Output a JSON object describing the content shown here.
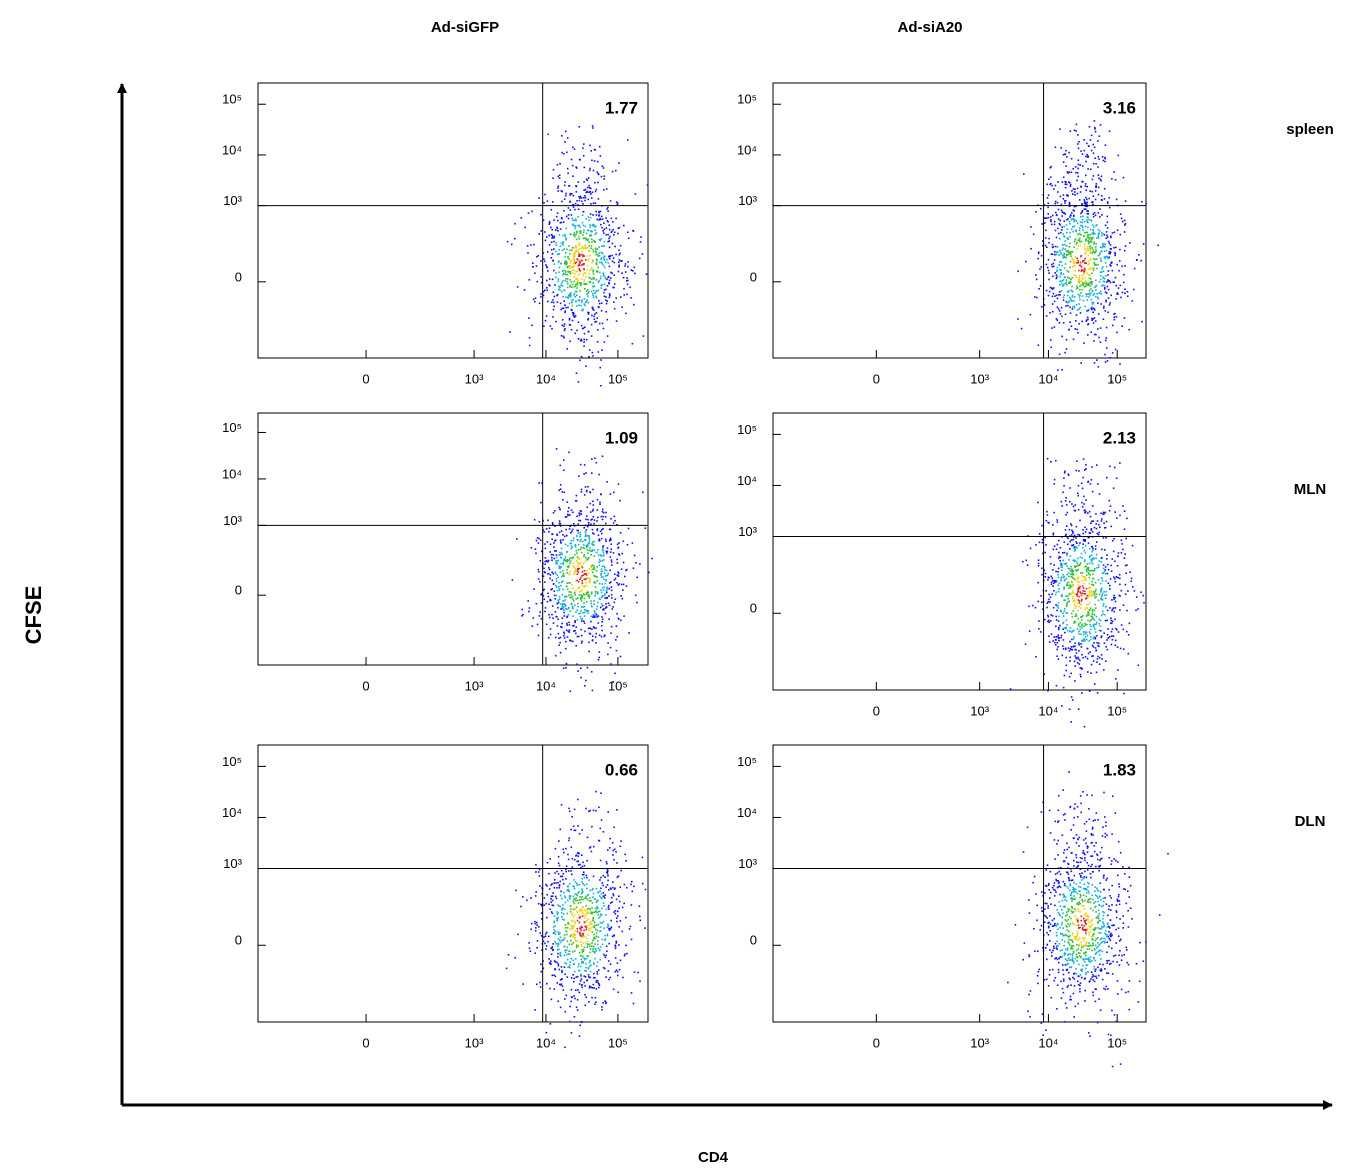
{
  "column_titles": [
    "Ad-siGFP",
    "Ad-siA20"
  ],
  "row_titles": [
    "spleen",
    "MLN",
    "DLN"
  ],
  "y_axis_label": "CFSE",
  "x_axis_label": "CD4",
  "chart_data": [
    {
      "type": "flow_density",
      "scale": "biexponential",
      "quadrant_value": 1.77,
      "gate": {
        "x": 9000,
        "y": 1000
      },
      "xlim": [
        -1000,
        262144
      ],
      "ylim": [
        -1000,
        262144
      ],
      "xticks": [
        0,
        {
          "value": 1000,
          "label": "10³"
        },
        {
          "value": 10000,
          "label": "10⁴"
        },
        {
          "value": 100000,
          "label": "10⁵"
        }
      ],
      "yticks": [
        0,
        {
          "value": 1000,
          "label": "10³"
        },
        {
          "value": 10000,
          "label": "10⁴"
        },
        {
          "value": 100000,
          "label": "10⁵"
        }
      ]
    },
    {
      "type": "flow_density",
      "scale": "biexponential",
      "quadrant_value": 3.16,
      "gate": {
        "x": 8500,
        "y": 1000
      },
      "xlim": [
        -1000,
        262144
      ],
      "ylim": [
        -1000,
        262144
      ],
      "xticks": [
        0,
        {
          "value": 1000,
          "label": "10³"
        },
        {
          "value": 10000,
          "label": "10⁴"
        },
        {
          "value": 100000,
          "label": "10⁵"
        }
      ],
      "yticks": [
        0,
        {
          "value": 1000,
          "label": "10³"
        },
        {
          "value": 10000,
          "label": "10⁴"
        },
        {
          "value": 100000,
          "label": "10⁵"
        }
      ]
    },
    {
      "type": "flow_density",
      "scale": "biexponential",
      "quadrant_value": 1.09,
      "gate": {
        "x": 9000,
        "y": 1000
      },
      "xlim": [
        -1000,
        262144
      ],
      "ylim": [
        -1000,
        262144
      ],
      "xticks": [
        0,
        {
          "value": 1000,
          "label": "10³"
        },
        {
          "value": 10000,
          "label": "10⁴"
        },
        {
          "value": 100000,
          "label": "10⁵"
        }
      ],
      "yticks": [
        0,
        {
          "value": 1000,
          "label": "10³"
        },
        {
          "value": 10000,
          "label": "10⁴"
        },
        {
          "value": 100000,
          "label": "10⁵"
        }
      ]
    },
    {
      "type": "flow_density",
      "scale": "biexponential",
      "quadrant_value": 2.13,
      "gate": {
        "x": 8500,
        "y": 1000
      },
      "xlim": [
        -1000,
        262144
      ],
      "ylim": [
        -1000,
        262144
      ],
      "xticks": [
        0,
        {
          "value": 1000,
          "label": "10³"
        },
        {
          "value": 10000,
          "label": "10⁴"
        },
        {
          "value": 100000,
          "label": "10⁵"
        }
      ],
      "yticks": [
        0,
        {
          "value": 1000,
          "label": "10³"
        },
        {
          "value": 10000,
          "label": "10⁴"
        },
        {
          "value": 100000,
          "label": "10⁵"
        }
      ]
    },
    {
      "type": "flow_density",
      "scale": "biexponential",
      "quadrant_value": 0.66,
      "gate": {
        "x": 9000,
        "y": 1000
      },
      "xlim": [
        -1000,
        262144
      ],
      "ylim": [
        -1000,
        262144
      ],
      "xticks": [
        0,
        {
          "value": 1000,
          "label": "10³"
        },
        {
          "value": 10000,
          "label": "10⁴"
        },
        {
          "value": 100000,
          "label": "10⁵"
        }
      ],
      "yticks": [
        0,
        {
          "value": 1000,
          "label": "10³"
        },
        {
          "value": 10000,
          "label": "10⁴"
        },
        {
          "value": 100000,
          "label": "10⁵"
        }
      ]
    },
    {
      "type": "flow_density",
      "scale": "biexponential",
      "quadrant_value": 1.83,
      "gate": {
        "x": 8500,
        "y": 1000
      },
      "xlim": [
        -1000,
        262144
      ],
      "ylim": [
        -1000,
        262144
      ],
      "xticks": [
        0,
        {
          "value": 1000,
          "label": "10³"
        },
        {
          "value": 10000,
          "label": "10⁴"
        },
        {
          "value": 100000,
          "label": "10⁵"
        }
      ],
      "yticks": [
        0,
        {
          "value": 1000,
          "label": "10³"
        },
        {
          "value": 10000,
          "label": "10⁴"
        },
        {
          "value": 100000,
          "label": "10⁵"
        }
      ]
    }
  ]
}
